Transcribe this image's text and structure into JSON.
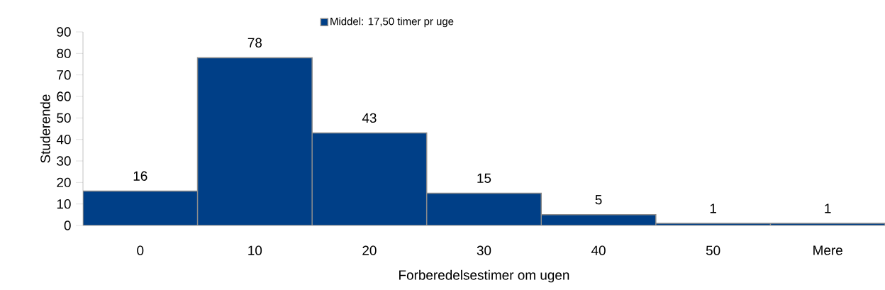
{
  "chart_data": {
    "type": "bar",
    "xlabel": "Forberedelsestimer om ugen",
    "ylabel": "Studerende",
    "categories": [
      "0",
      "10",
      "20",
      "30",
      "40",
      "50",
      "Mere"
    ],
    "series": [
      {
        "name": "Middel: 17,50 timer pr uge",
        "color": "#003f87",
        "values": [
          16,
          78,
          43,
          15,
          5,
          1,
          1
        ]
      }
    ],
    "ylim": [
      0,
      90
    ],
    "yticks": [
      0,
      10,
      20,
      30,
      40,
      50,
      60,
      70,
      80,
      90
    ],
    "data_labels": true,
    "legend": "top",
    "grid": false
  }
}
